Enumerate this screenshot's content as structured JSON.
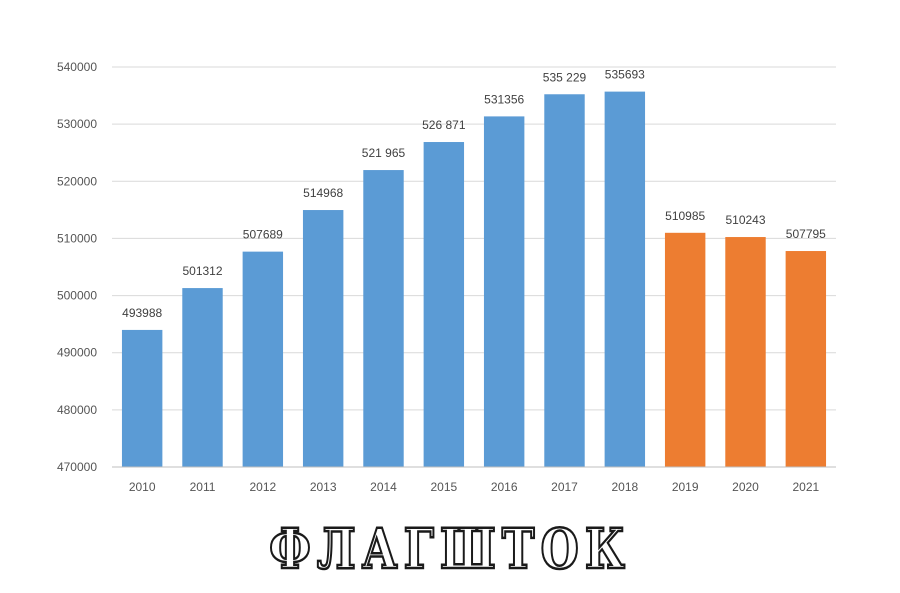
{
  "chart_data": {
    "type": "bar",
    "categories": [
      "2010",
      "2011",
      "2012",
      "2013",
      "2014",
      "2015",
      "2016",
      "2017",
      "2018",
      "2019",
      "2020",
      "2021"
    ],
    "values": [
      493988,
      501312,
      507689,
      514968,
      521965,
      526871,
      531356,
      535229,
      535693,
      510985,
      510243,
      507795
    ],
    "data_labels": [
      "493988",
      "501312",
      "507689",
      "514968",
      "521 965",
      "526 871",
      "531356",
      "535 229",
      "535693",
      "510985",
      "510243",
      "507795"
    ],
    "bar_colors": [
      "#5b9bd5",
      "#5b9bd5",
      "#5b9bd5",
      "#5b9bd5",
      "#5b9bd5",
      "#5b9bd5",
      "#5b9bd5",
      "#5b9bd5",
      "#5b9bd5",
      "#ed7d31",
      "#ed7d31",
      "#ed7d31"
    ],
    "ylim": [
      470000,
      540000
    ],
    "yticks": [
      "470000",
      "480000",
      "490000",
      "500000",
      "510000",
      "520000",
      "530000",
      "540000"
    ],
    "grid": true,
    "title": "",
    "xlabel": "",
    "ylabel": ""
  },
  "watermark": "ФЛАГШТОК"
}
